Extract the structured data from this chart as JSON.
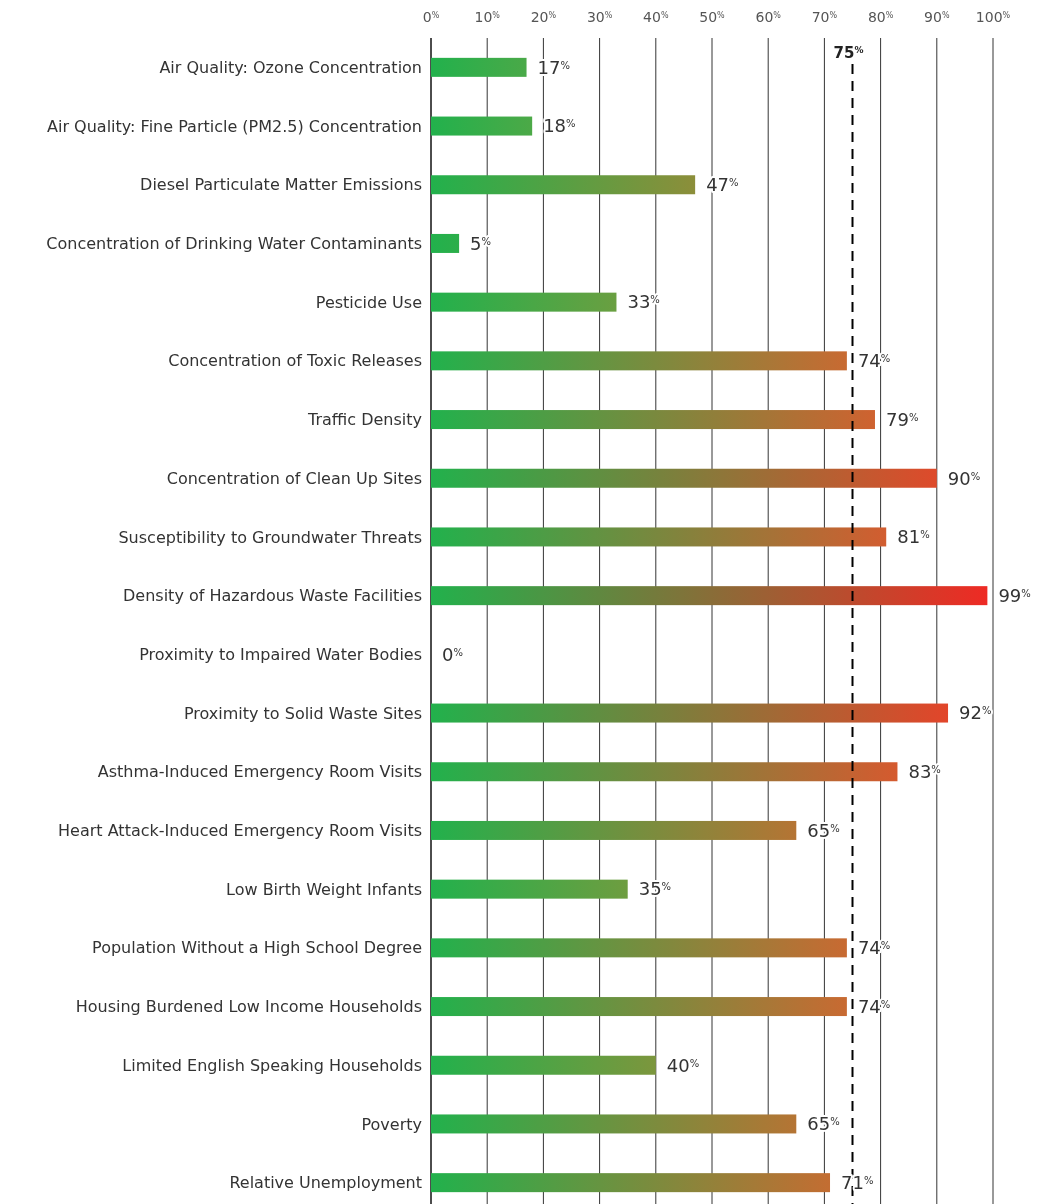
{
  "chart_data": {
    "type": "bar",
    "orientation": "horizontal",
    "categories": [
      "Air Quality: Ozone Concentration",
      "Air Quality: Fine Particle (PM2.5) Concentration",
      "Diesel Particulate Matter Emissions",
      "Concentration of Drinking Water Contaminants",
      "Pesticide Use",
      "Concentration of Toxic Releases",
      "Traffic Density",
      "Concentration of Clean Up Sites",
      "Susceptibility to Groundwater Threats",
      "Density of Hazardous Waste Facilities",
      "Proximity to Impaired Water Bodies",
      "Proximity to Solid Waste Sites",
      "Asthma-Induced Emergency Room Visits",
      "Heart Attack-Induced Emergency Room Visits",
      "Low Birth Weight Infants",
      "Population Without a High School Degree",
      "Housing Burdened Low Income Households",
      "Limited English Speaking Households",
      "Poverty",
      "Relative Unemployment"
    ],
    "values": [
      17,
      18,
      47,
      5,
      33,
      74,
      79,
      90,
      81,
      99,
      0,
      92,
      83,
      65,
      35,
      74,
      74,
      40,
      65,
      71
    ],
    "value_labels": [
      "17$^{%}$",
      "18$^{%}$",
      "47$^{%}$",
      "5$^{%}$",
      "33$^{%}$",
      "74$^{%}$",
      "79$^{%}$",
      "90$^{%}$",
      "81$^{%}$",
      "99$^{%}$",
      "0$^{%}$",
      "92$^{%}$",
      "83$^{%}$",
      "65$^{%}$",
      "35$^{%}$",
      "74$^{%}$",
      "74$^{%}$",
      "40$^{%}$",
      "65$^{%}$",
      "71$^{%}$"
    ],
    "color": "#22b14c",
    "colors": [
      "#4aa948",
      "#4ca947",
      "#8c8e3a",
      "#2cae4a",
      "#6a9f41",
      "#c86a32",
      "#cf6230",
      "#de4a2b",
      "#d25d30",
      "#ee2a24",
      "#22b14c",
      "#e2452a",
      "#d55a2f",
      "#b57434",
      "#6e9d40",
      "#c86a32",
      "#c86a32",
      "#7c963d",
      "#b57434",
      "#c36d32"
    ],
    "xlim": [
      0,
      100
    ],
    "xticks": [
      {
        "value": 0,
        "label": "0$^{%}$"
      },
      {
        "value": 10,
        "label": "10$^{%}$"
      },
      {
        "value": 20,
        "label": "20$^{%}$"
      },
      {
        "value": 30,
        "label": "30$^{%}$"
      },
      {
        "value": 40,
        "label": "40$^{%}$"
      },
      {
        "value": 50,
        "label": "50$^{%}$"
      },
      {
        "value": 60,
        "label": "60$^{%}$"
      },
      {
        "value": 70,
        "label": "70$^{%}$"
      },
      {
        "value": 80,
        "label": "80$^{%}$"
      },
      {
        "value": 90,
        "label": "90$^{%}$"
      },
      {
        "value": 100,
        "label": "100$^{%}$"
      }
    ],
    "ref_lines": [
      {
        "axis": "x",
        "value": 75,
        "label": "75$^{%}$",
        "color": "#000000",
        "line_style": "dashed"
      }
    ],
    "grid": "x"
  }
}
